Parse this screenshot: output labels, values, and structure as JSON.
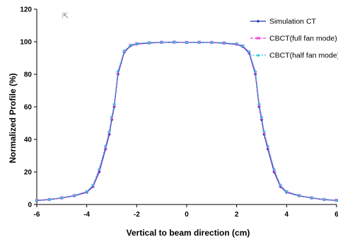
{
  "chart_data": {
    "type": "line",
    "title": "",
    "xlabel": "Vertical to beam direction (cm)",
    "ylabel": "Normalized Profile (%)",
    "xlim": [
      -6,
      6
    ],
    "ylim": [
      0,
      120
    ],
    "x_ticks": [
      "-6",
      "-4",
      "-2",
      "0",
      "2",
      "4",
      "6"
    ],
    "y_ticks": [
      "0",
      "20",
      "40",
      "60",
      "80",
      "100",
      "120"
    ],
    "legend_position": "top-right",
    "grid": false,
    "x": [
      -6.0,
      -5.5,
      -5.0,
      -4.5,
      -4.0,
      -3.75,
      -3.5,
      -3.25,
      -3.1,
      -3.0,
      -2.9,
      -2.75,
      -2.5,
      -2.25,
      -2.0,
      -1.5,
      -1.0,
      -0.5,
      0.0,
      0.5,
      1.0,
      1.5,
      2.0,
      2.25,
      2.5,
      2.75,
      2.9,
      3.0,
      3.1,
      3.25,
      3.5,
      3.75,
      4.0,
      4.5,
      5.0,
      5.5,
      6.0
    ],
    "series": [
      {
        "name": "Simulation CT",
        "color": "#1c2fb5",
        "marker": "diamond",
        "values": [
          2.5,
          3.0,
          4.0,
          5.3,
          7.5,
          11.0,
          20.0,
          34.0,
          43.0,
          52.0,
          60.0,
          80.0,
          93.5,
          97.5,
          98.6,
          99.2,
          99.6,
          99.7,
          99.5,
          99.6,
          99.5,
          99.1,
          98.4,
          97.0,
          93.0,
          80.0,
          60.0,
          52.0,
          43.0,
          34.0,
          20.0,
          11.0,
          7.5,
          5.3,
          4.0,
          3.0,
          2.5
        ]
      },
      {
        "name": "CBCT(full fan mode)",
        "color": "#e63ccf",
        "marker": "x",
        "values": [
          2.6,
          3.1,
          4.1,
          5.5,
          7.8,
          11.5,
          21.0,
          35.0,
          44.0,
          53.0,
          61.0,
          81.0,
          94.0,
          97.8,
          98.8,
          99.4,
          99.7,
          99.8,
          99.6,
          99.7,
          99.6,
          99.3,
          98.6,
          97.3,
          93.5,
          81.0,
          61.0,
          53.0,
          44.0,
          35.0,
          21.0,
          11.5,
          7.8,
          5.5,
          4.1,
          3.1,
          2.6
        ]
      },
      {
        "name": "CBCT(half fan mode)",
        "color": "#2ec4e0",
        "marker": "triangle",
        "values": [
          2.7,
          3.2,
          4.2,
          5.6,
          8.0,
          12.0,
          22.0,
          36.0,
          45.0,
          54.0,
          62.0,
          82.0,
          94.5,
          98.0,
          99.0,
          99.5,
          99.8,
          99.9,
          99.7,
          99.8,
          99.7,
          99.4,
          98.8,
          97.6,
          94.0,
          82.0,
          62.0,
          54.0,
          45.0,
          36.0,
          22.0,
          12.0,
          8.0,
          5.6,
          4.2,
          3.2,
          2.7
        ]
      }
    ]
  }
}
